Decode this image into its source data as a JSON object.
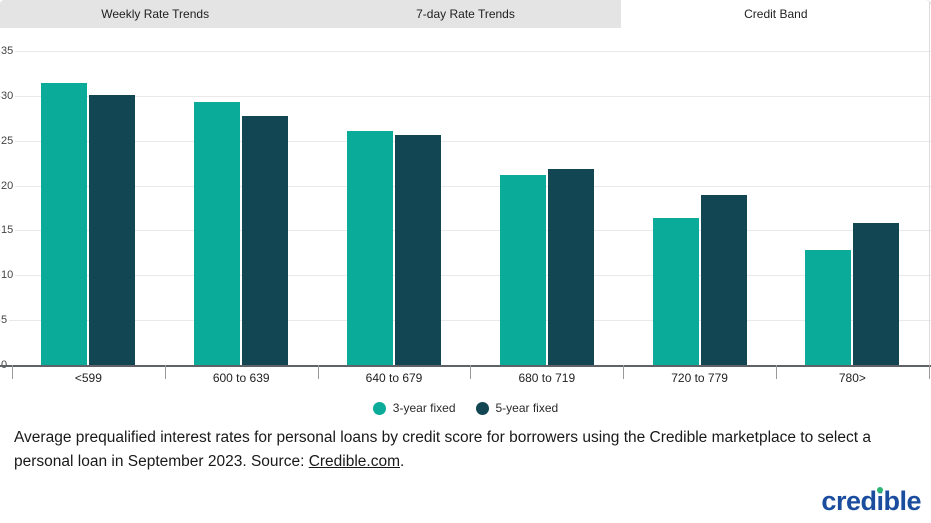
{
  "tabs": [
    {
      "label": "Weekly Rate Trends",
      "active": false
    },
    {
      "label": "7-day Rate Trends",
      "active": false
    },
    {
      "label": "Credit Band",
      "active": true
    }
  ],
  "chart_data": {
    "type": "bar",
    "categories": [
      "<599",
      "600 to 639",
      "640 to 679",
      "680 to 719",
      "720 to 779",
      "780>"
    ],
    "series": [
      {
        "name": "3-year fixed",
        "color": "#0aab98",
        "values": [
          31.4,
          29.3,
          26.1,
          21.2,
          16.4,
          12.8
        ]
      },
      {
        "name": "5-year fixed",
        "color": "#124653",
        "values": [
          30.1,
          27.7,
          25.6,
          21.8,
          18.9,
          15.8
        ]
      }
    ],
    "ylabel": "",
    "xlabel": "",
    "ylim": [
      0,
      35
    ],
    "ytick_step": 5,
    "grid": true,
    "legend_position": "bottom",
    "units": "percent"
  },
  "caption": {
    "before_link": "Average prequalified interest rates for personal loans by credit score for borrowers using the Credible marketplace to select a personal loan in September 2023. Source: ",
    "link_text": "Credible.com",
    "after_link": "."
  },
  "logo": {
    "part1": "cred",
    "part2": "i",
    "part3": "ble",
    "blue": "#1b4d9e",
    "green": "#2bb673"
  }
}
